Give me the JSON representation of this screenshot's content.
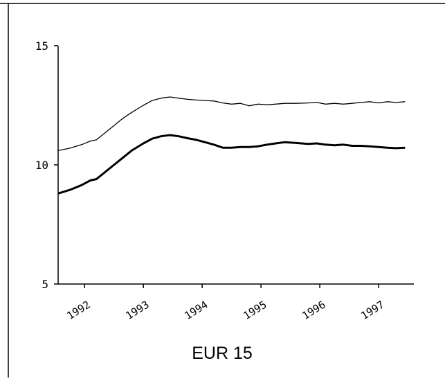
{
  "chart_data": {
    "type": "line",
    "title": "EUR 15",
    "xlabel": "",
    "ylabel": "",
    "ylim": [
      5,
      15
    ],
    "xlim": [
      1991.55,
      1997.6
    ],
    "y_ticks": [
      "5",
      "10",
      "15"
    ],
    "y_tick_values": [
      5,
      10,
      15
    ],
    "x_ticks": [
      "1992",
      "1993",
      "1994",
      "1995",
      "1996",
      "1997"
    ],
    "x_tick_values": [
      1992,
      1993,
      1994,
      1995,
      1996,
      1997
    ],
    "grid": false,
    "legend": "none",
    "series": [
      {
        "style": "thin",
        "color": "#000000",
        "points": [
          [
            1991.55,
            10.6
          ],
          [
            1991.75,
            10.7
          ],
          [
            1991.95,
            10.85
          ],
          [
            1992.1,
            11.0
          ],
          [
            1992.2,
            11.05
          ],
          [
            1992.35,
            11.35
          ],
          [
            1992.5,
            11.65
          ],
          [
            1992.65,
            11.95
          ],
          [
            1992.8,
            12.2
          ],
          [
            1993.0,
            12.5
          ],
          [
            1993.15,
            12.7
          ],
          [
            1993.3,
            12.8
          ],
          [
            1993.45,
            12.85
          ],
          [
            1993.6,
            12.8
          ],
          [
            1993.75,
            12.75
          ],
          [
            1993.9,
            12.72
          ],
          [
            1994.05,
            12.7
          ],
          [
            1994.2,
            12.68
          ],
          [
            1994.35,
            12.6
          ],
          [
            1994.5,
            12.55
          ],
          [
            1994.65,
            12.58
          ],
          [
            1994.8,
            12.48
          ],
          [
            1994.95,
            12.55
          ],
          [
            1995.1,
            12.52
          ],
          [
            1995.25,
            12.55
          ],
          [
            1995.4,
            12.58
          ],
          [
            1995.6,
            12.58
          ],
          [
            1995.8,
            12.6
          ],
          [
            1995.95,
            12.62
          ],
          [
            1996.1,
            12.55
          ],
          [
            1996.25,
            12.58
          ],
          [
            1996.4,
            12.55
          ],
          [
            1996.55,
            12.58
          ],
          [
            1996.7,
            12.62
          ],
          [
            1996.85,
            12.65
          ],
          [
            1997.0,
            12.6
          ],
          [
            1997.15,
            12.65
          ],
          [
            1997.3,
            12.62
          ],
          [
            1997.45,
            12.65
          ]
        ]
      },
      {
        "style": "thick",
        "color": "#000000",
        "points": [
          [
            1991.55,
            8.8
          ],
          [
            1991.75,
            8.95
          ],
          [
            1991.95,
            9.15
          ],
          [
            1992.1,
            9.35
          ],
          [
            1992.2,
            9.4
          ],
          [
            1992.35,
            9.7
          ],
          [
            1992.5,
            10.0
          ],
          [
            1992.65,
            10.3
          ],
          [
            1992.8,
            10.6
          ],
          [
            1993.0,
            10.9
          ],
          [
            1993.15,
            11.1
          ],
          [
            1993.3,
            11.2
          ],
          [
            1993.45,
            11.25
          ],
          [
            1993.6,
            11.2
          ],
          [
            1993.75,
            11.12
          ],
          [
            1993.9,
            11.05
          ],
          [
            1994.05,
            10.95
          ],
          [
            1994.2,
            10.85
          ],
          [
            1994.35,
            10.72
          ],
          [
            1994.5,
            10.72
          ],
          [
            1994.65,
            10.75
          ],
          [
            1994.8,
            10.75
          ],
          [
            1994.95,
            10.78
          ],
          [
            1995.1,
            10.85
          ],
          [
            1995.25,
            10.9
          ],
          [
            1995.4,
            10.95
          ],
          [
            1995.6,
            10.92
          ],
          [
            1995.8,
            10.88
          ],
          [
            1995.95,
            10.9
          ],
          [
            1996.1,
            10.85
          ],
          [
            1996.25,
            10.82
          ],
          [
            1996.4,
            10.85
          ],
          [
            1996.55,
            10.8
          ],
          [
            1996.7,
            10.8
          ],
          [
            1996.85,
            10.78
          ],
          [
            1997.0,
            10.75
          ],
          [
            1997.15,
            10.72
          ],
          [
            1997.3,
            10.7
          ],
          [
            1997.45,
            10.72
          ]
        ]
      }
    ]
  }
}
